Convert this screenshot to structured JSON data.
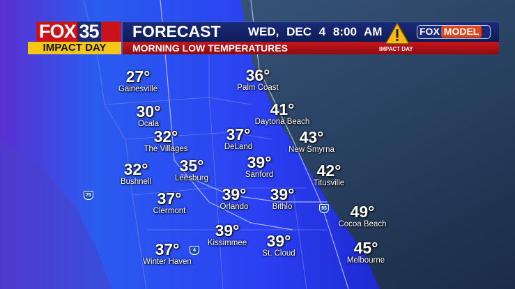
{
  "header": {
    "station_number": "35",
    "station_brand": "FOX",
    "impact_day": "IMPACT DAY",
    "title": "FORECAST",
    "date_time": "WED, DEC 4  8:00 AM",
    "subtitle": "MORNING LOW TEMPERATURES",
    "warning_label": "IMPACT DAY",
    "model_brand": "FOX",
    "model_label": "MODEL"
  },
  "colors": {
    "land": "#2d4cf5",
    "ocean": "#2b4a6e",
    "header_blue": "#1a2a78",
    "header_red": "#c8141a",
    "impact_yellow": "#f5c518"
  },
  "cities": [
    {
      "temp": "27°",
      "name": "Gainesville"
    },
    {
      "temp": "36°",
      "name": "Palm Coast"
    },
    {
      "temp": "30°",
      "name": "Ocala"
    },
    {
      "temp": "41°",
      "name": "Daytona Beach"
    },
    {
      "temp": "32°",
      "name": "The Villages"
    },
    {
      "temp": "37°",
      "name": "DeLand"
    },
    {
      "temp": "43°",
      "name": "New Smyrna"
    },
    {
      "temp": "32°",
      "name": "Bushnell"
    },
    {
      "temp": "35°",
      "name": "Leesburg"
    },
    {
      "temp": "39°",
      "name": "Sanford"
    },
    {
      "temp": "42°",
      "name": "Titusville"
    },
    {
      "temp": "37°",
      "name": "Clermont"
    },
    {
      "temp": "39°",
      "name": "Orlando"
    },
    {
      "temp": "39°",
      "name": "Bithlo"
    },
    {
      "temp": "49°",
      "name": "Cocoa Beach"
    },
    {
      "temp": "39°",
      "name": "Kissimmee"
    },
    {
      "temp": "39°",
      "name": "St. Cloud"
    },
    {
      "temp": "37°",
      "name": "Winter Haven"
    },
    {
      "temp": "45°",
      "name": "Melbourne"
    }
  ],
  "highways": [
    "75",
    "95",
    "4"
  ]
}
